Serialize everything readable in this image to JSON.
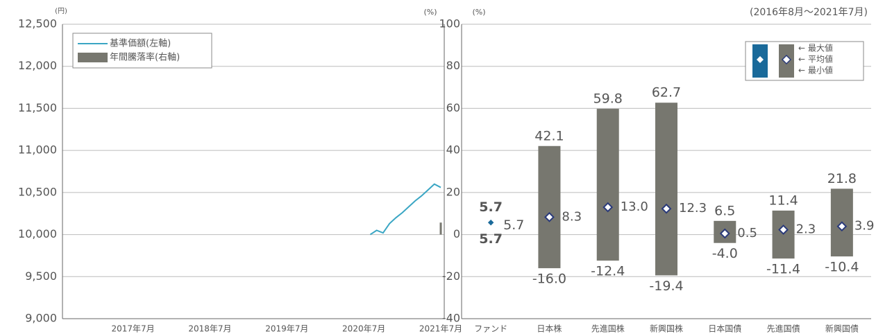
{
  "chart_data": [
    {
      "type": "line",
      "ylabel": "(円)",
      "y2label": "(%)",
      "xlim": [
        "2016-08",
        "2021-07"
      ],
      "xticks": [
        {
          "value": "2017-07",
          "label": "2017年7月"
        },
        {
          "value": "2018-07",
          "label": "2018年7月"
        },
        {
          "value": "2019-07",
          "label": "2019年7月"
        },
        {
          "value": "2020-07",
          "label": "2020年7月"
        },
        {
          "value": "2021-07",
          "label": "2021年7月"
        }
      ],
      "ylim": [
        9000,
        12500
      ],
      "yticks": [
        {
          "value": 9000,
          "label": "9,000"
        },
        {
          "value": 9500,
          "label": "9,500"
        },
        {
          "value": 10000,
          "label": "10,000"
        },
        {
          "value": 10500,
          "label": "10,500"
        },
        {
          "value": 11000,
          "label": "11,000"
        },
        {
          "value": 11500,
          "label": "11,500"
        },
        {
          "value": 12000,
          "label": "12,000"
        },
        {
          "value": 12500,
          "label": "12,500"
        }
      ],
      "y2lim": [
        -40,
        100
      ],
      "grid": true,
      "legend": "top-left",
      "series": [
        {
          "name": "基準価額(左軸)",
          "type": "line",
          "color": "#3aa6c4",
          "x": [
            "2020-08",
            "2020-09",
            "2020-10",
            "2020-11",
            "2020-12",
            "2021-01",
            "2021-02",
            "2021-03",
            "2021-04",
            "2021-05",
            "2021-06",
            "2021-07"
          ],
          "values": [
            10000,
            10050,
            10020,
            10130,
            10200,
            10260,
            10330,
            10400,
            10460,
            10530,
            10600,
            10560
          ]
        },
        {
          "name": "年間騰落率(右軸)",
          "type": "bar",
          "axis": "y2",
          "color": "#77776f",
          "x": [
            "2021-07"
          ],
          "values": [
            5.7
          ]
        }
      ]
    },
    {
      "type": "range",
      "ylabel": "(%)",
      "subtitle": "(2016年8月～2021年7月)",
      "categories": [
        "ファンド",
        "日本株",
        "先進国株",
        "新興国株",
        "日本国債",
        "先進国債",
        "新興国債"
      ],
      "ylim": [
        -40,
        100
      ],
      "yticks": [
        -40,
        -20,
        0,
        20,
        40,
        60,
        80,
        100
      ],
      "grid": true,
      "legend": "top-right",
      "bar_color": "#77776f",
      "highlight_color": "#1a6a9a",
      "highlight_avg_color": "#5ab4d6",
      "series": [
        {
          "name": "最大値",
          "color": "#444444",
          "values": [
            5.7,
            42.1,
            59.8,
            62.7,
            6.5,
            11.4,
            21.8
          ],
          "value_labels": [
            "5.7",
            "42.1",
            "59.8",
            "62.7",
            "6.5",
            "11.4",
            "21.8"
          ]
        },
        {
          "name": "平均値",
          "color": "#5a4a9a",
          "values": [
            5.7,
            8.3,
            13.0,
            12.3,
            0.5,
            2.3,
            3.9
          ],
          "value_labels": [
            "5.7",
            "8.3",
            "13.0",
            "12.3",
            "0.5",
            "2.3",
            "3.9"
          ]
        },
        {
          "name": "最小値",
          "color": "#444444",
          "values": [
            5.7,
            -16.0,
            -12.4,
            -19.4,
            -4.0,
            -11.4,
            -10.4
          ],
          "value_labels": [
            "5.7",
            "-16.0",
            "-12.4",
            "-19.4",
            "-4.0",
            "-11.4",
            "-10.4"
          ]
        }
      ]
    }
  ]
}
